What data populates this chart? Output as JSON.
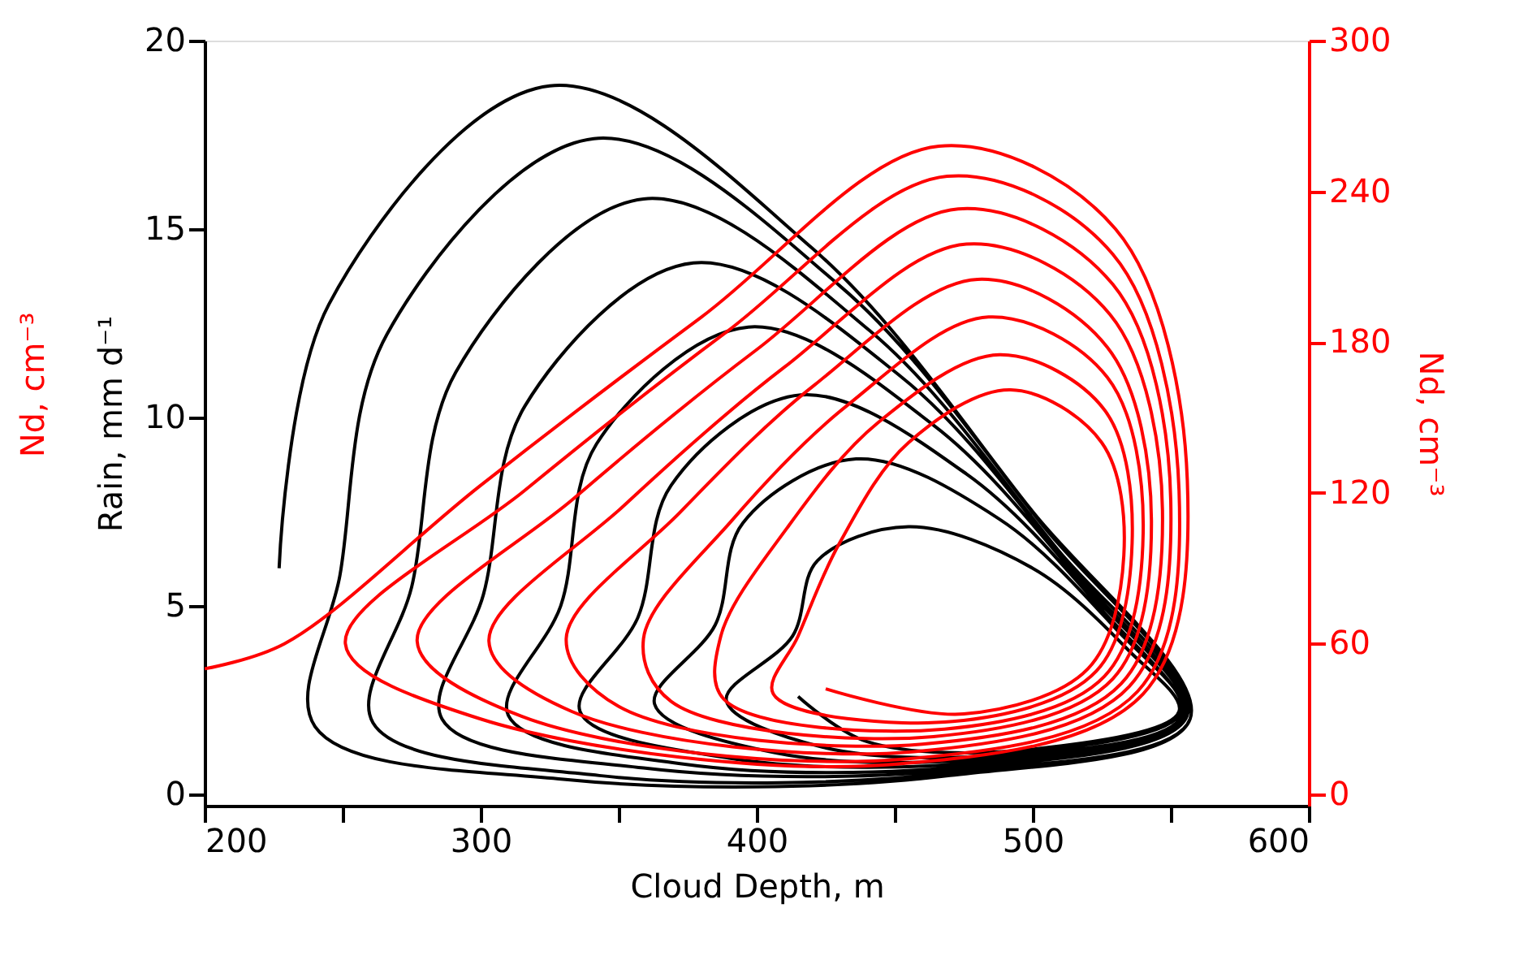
{
  "chart_data": {
    "type": "line",
    "xlabel": "Cloud Depth, m",
    "ylabel": "Rain, mm d⁻¹",
    "y2label": "Nd, cm⁻³",
    "annotations": [
      "Nd, cm⁻³"
    ],
    "xlim": [
      200,
      600
    ],
    "xticks": [
      200,
      {
        "value": 250,
        "label": null
      },
      300,
      {
        "value": 350,
        "label": null
      },
      400,
      {
        "value": 450,
        "label": null
      },
      500,
      {
        "value": 550,
        "label": null
      },
      600
    ],
    "ylim": [
      -0.3,
      20
    ],
    "yticks": [
      0,
      5,
      10,
      15,
      20
    ],
    "y2lim": [
      -4.5,
      300
    ],
    "y2ticks": [
      0,
      60,
      120,
      180,
      240,
      300
    ],
    "grid": false,
    "series": [
      {
        "color": "#000000",
        "axis": "y",
        "x": [
          227,
          245,
          325,
          420,
          500,
          557,
          470,
          330,
          240,
          249,
          266,
          341,
          430,
          504,
          557,
          474,
          343,
          261,
          275,
          291,
          359,
          441,
          509,
          556,
          478,
          359,
          286,
          301,
          316,
          377,
          452,
          514,
          555,
          482,
          374,
          310,
          329,
          342,
          397,
          464,
          519,
          555,
          487,
          391,
          336,
          357,
          369,
          416,
          476,
          525,
          554,
          491,
          407,
          363,
          385,
          395,
          436,
          488,
          530,
          554,
          496,
          424,
          389,
          413,
          422,
          455,
          500,
          535,
          553,
          500,
          440,
          415
        ],
        "values": [
          6,
          13,
          18.8,
          14.5,
          7.5,
          2,
          0.5,
          0.4,
          1.8,
          5.8,
          12.2,
          17.4,
          13.5,
          7.1,
          2.0,
          0.6,
          0.5,
          1.9,
          5.5,
          11.2,
          15.8,
          12.3,
          6.5,
          2.1,
          0.7,
          0.7,
          2.0,
          5.3,
          10.3,
          14.1,
          11.1,
          6.0,
          2.1,
          0.8,
          0.8,
          2.1,
          5.0,
          9.3,
          12.4,
          9.8,
          5.5,
          2.1,
          0.9,
          0.95,
          2.2,
          4.7,
          8.2,
          10.6,
          8.5,
          4.9,
          2.1,
          1.0,
          1.1,
          2.4,
          4.5,
          7.2,
          8.9,
          7.3,
          4.4,
          2.2,
          1.1,
          1.25,
          2.5,
          4.2,
          6.2,
          7.1,
          6,
          3.8,
          2.2,
          1.2,
          1.4,
          2.6
        ]
      },
      {
        "color": "#ff0000",
        "axis": "y2",
        "x": [
          200,
          229,
          300,
          380,
          466,
          530,
          556,
          540,
          450,
          300,
          251,
          316,
          389,
          469,
          529,
          553,
          538,
          453,
          315,
          277,
          334,
          400,
          473,
          529,
          550,
          535,
          457,
          333,
          303,
          352,
          410,
          476,
          528,
          547,
          532,
          460,
          350,
          331,
          372,
          421,
          480,
          527,
          543,
          529,
          464,
          369,
          359,
          391,
          433,
          484,
          527,
          540,
          526,
          468,
          388,
          387,
          411,
          444,
          488,
          526,
          536,
          523,
          471,
          406,
          415,
          430,
          455,
          492,
          525,
          533,
          520,
          475,
          425
        ],
        "values": [
          50,
          60,
          123,
          190,
          258,
          225,
          125,
          40,
          12,
          30,
          60,
          121,
          184,
          246,
          215,
          121,
          41,
          14,
          31,
          61,
          118,
          177,
          233,
          203,
          117,
          43,
          17,
          33,
          61,
          115,
          170,
          219,
          191,
          113,
          44,
          20,
          35,
          62,
          112,
          163,
          205,
          178,
          109,
          46,
          23,
          37,
          62,
          109,
          155,
          190,
          166,
          104,
          47,
          26,
          38,
          63,
          106,
          148,
          175,
          153,
          100,
          49,
          29,
          40,
          63,
          100,
          140,
          161,
          140,
          95,
          50,
          32,
          42
        ]
      }
    ]
  }
}
